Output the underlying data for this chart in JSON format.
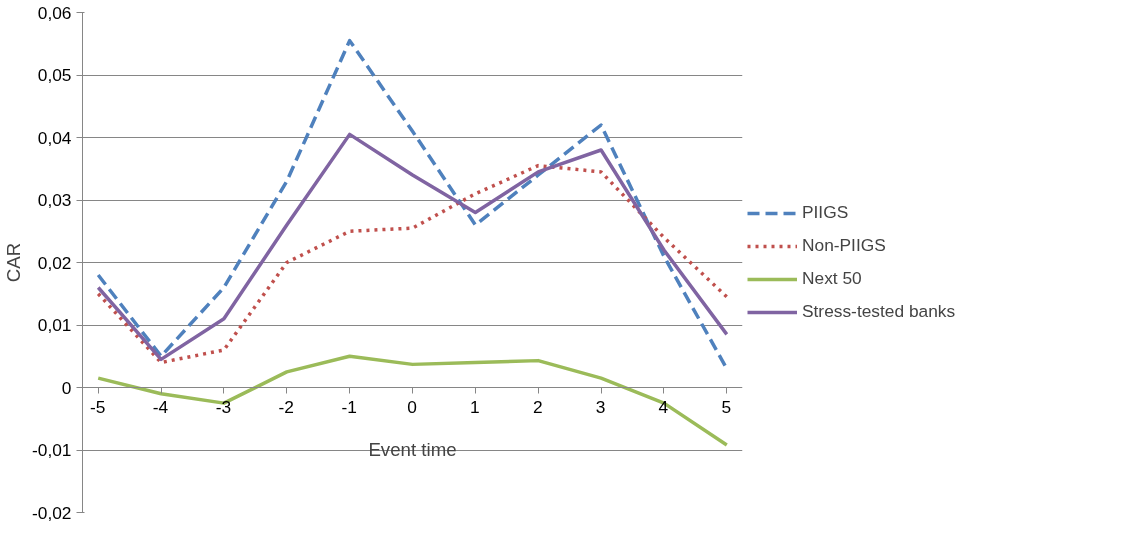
{
  "chart_data": {
    "type": "line",
    "xlabel": "Event time",
    "ylabel": "CAR",
    "x": [
      -5,
      -4,
      -3,
      -2,
      -1,
      0,
      1,
      2,
      3,
      4,
      5
    ],
    "series": [
      {
        "name": "PIIGS",
        "color": "#4f81bd",
        "line_style": "dashed",
        "values": [
          0.018,
          0.005,
          0.016,
          0.033,
          0.0555,
          0.041,
          0.026,
          0.034,
          0.042,
          0.021,
          0.003
        ]
      },
      {
        "name": "Non-PIIGS",
        "color": "#c0504d",
        "line_style": "dotted",
        "values": [
          0.015,
          0.004,
          0.006,
          0.02,
          0.025,
          0.0255,
          0.031,
          0.0355,
          0.0345,
          0.024,
          0.0145
        ]
      },
      {
        "name": "Next 50",
        "color": "#9bbb59",
        "line_style": "solid",
        "values": [
          0.0015,
          -0.001,
          -0.0025,
          0.0025,
          0.005,
          0.0037,
          0.004,
          0.0043,
          0.0015,
          -0.0025,
          -0.0092
        ]
      },
      {
        "name": "Stress-tested banks",
        "color": "#8064a2",
        "line_style": "solid",
        "values": [
          0.016,
          0.0045,
          0.011,
          0.026,
          0.0405,
          0.034,
          0.028,
          0.0345,
          0.038,
          0.022,
          0.0085
        ]
      }
    ],
    "xlim": [
      -5,
      5
    ],
    "xticks": [
      -5,
      -4,
      -3,
      -2,
      -1,
      0,
      1,
      2,
      3,
      4,
      5
    ],
    "ylim": [
      -0.02,
      0.06
    ],
    "yticks": [
      {
        "value": -0.02,
        "label": "-0,02"
      },
      {
        "value": -0.01,
        "label": "-0,01"
      },
      0,
      {
        "value": 0.01,
        "label": "0,01"
      },
      {
        "value": 0.02,
        "label": "0,02"
      },
      {
        "value": 0.03,
        "label": "0,03"
      },
      {
        "value": 0.04,
        "label": "0,04"
      },
      {
        "value": 0.05,
        "label": "0,05"
      },
      {
        "value": 0.06,
        "label": "0,06"
      }
    ],
    "grid": "y",
    "legend": "right",
    "marker": "none"
  }
}
